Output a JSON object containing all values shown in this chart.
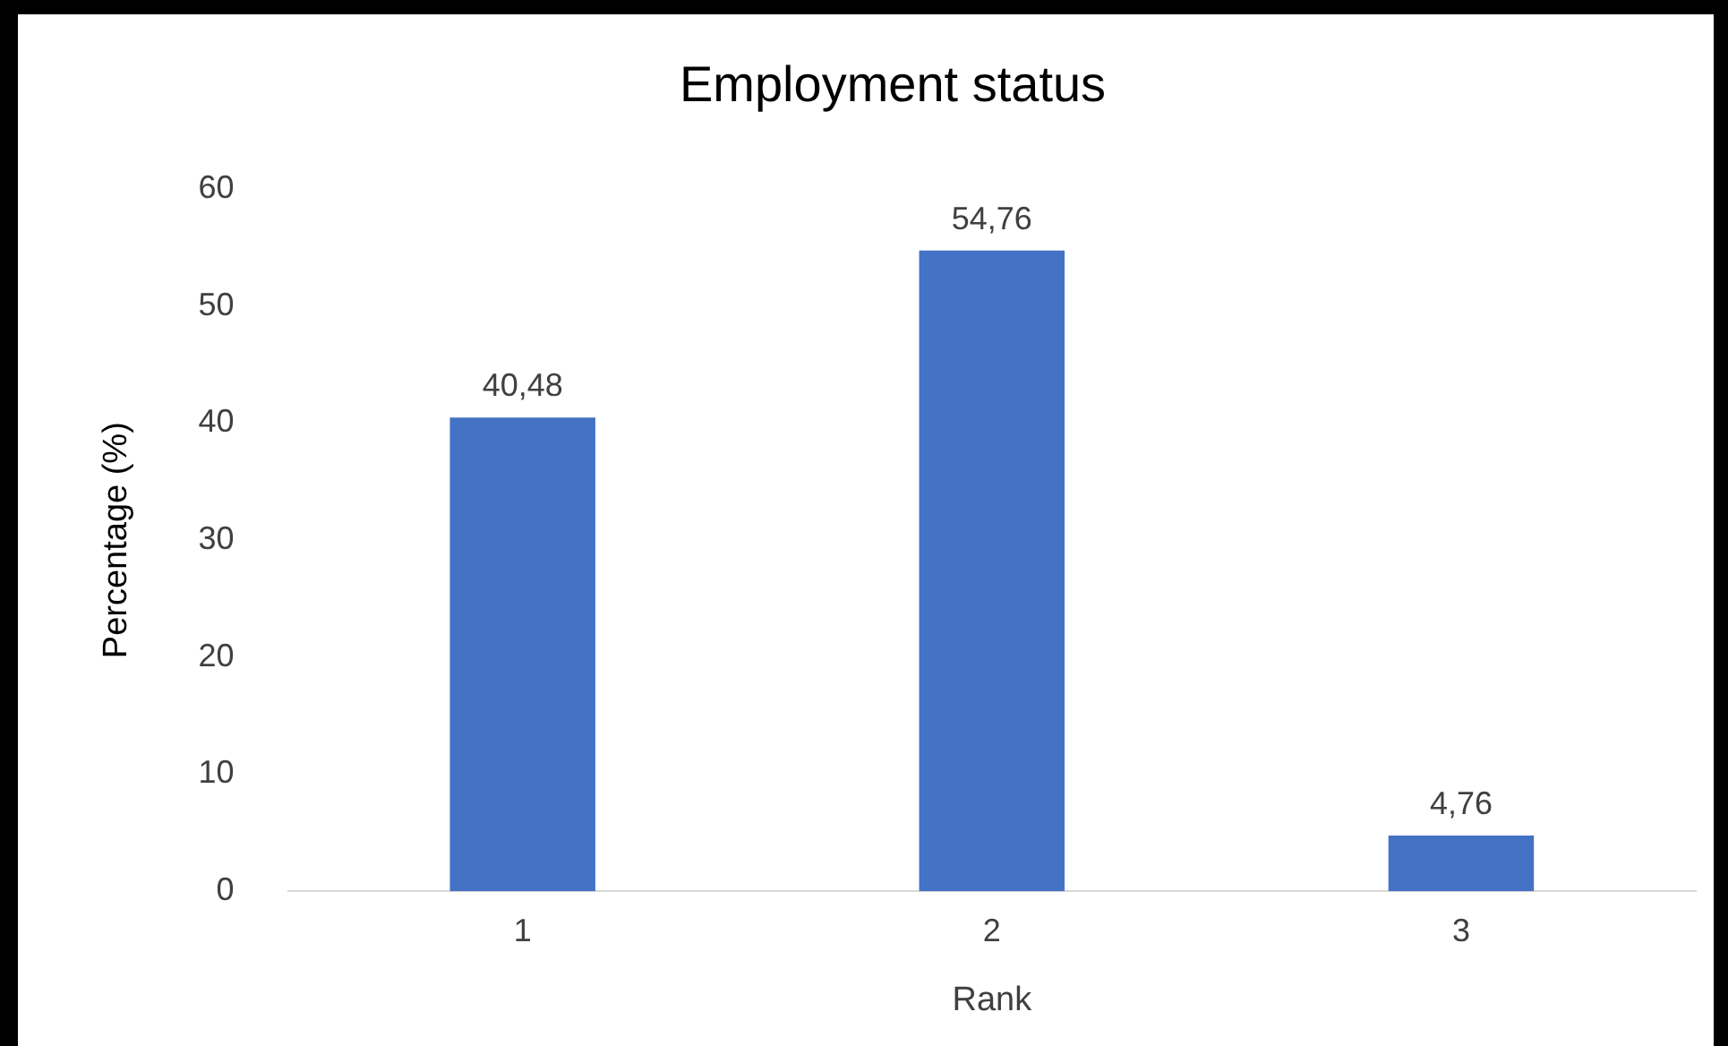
{
  "chart_data": {
    "type": "bar",
    "title": "Employment status",
    "xlabel": "Rank",
    "ylabel": "Percentage (%)",
    "categories": [
      "1",
      "2",
      "3"
    ],
    "values": [
      40.48,
      54.76,
      4.76
    ],
    "value_labels": [
      "40,48",
      "54,76",
      "4,76"
    ],
    "color": "#4472c4",
    "ylim": [
      0,
      60
    ],
    "yticks": [
      0,
      10,
      20,
      30,
      40,
      50,
      60
    ],
    "grid": false,
    "legend": false
  }
}
